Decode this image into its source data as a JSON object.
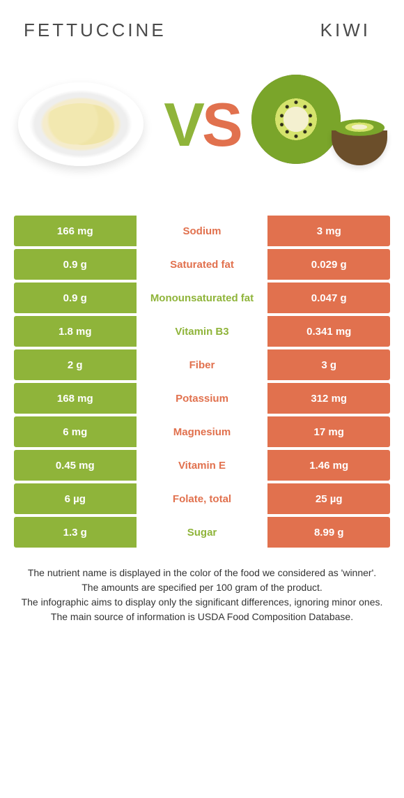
{
  "colors": {
    "left": "#8fb43a",
    "right": "#e1714e",
    "text": "#4a4a4a"
  },
  "food_left": "FETTUCCINE",
  "food_right": "KIWI",
  "title_fontsize": 26,
  "vs_label": "VS",
  "col_widths_pct": [
    33,
    34,
    33
  ],
  "rows": [
    {
      "nutrient": "Sodium",
      "winner": "right",
      "left": "166 mg",
      "right": "3 mg"
    },
    {
      "nutrient": "Saturated fat",
      "winner": "right",
      "left": "0.9 g",
      "right": "0.029 g"
    },
    {
      "nutrient": "Monounsaturated fat",
      "winner": "left",
      "left": "0.9 g",
      "right": "0.047 g"
    },
    {
      "nutrient": "Vitamin B3",
      "winner": "left",
      "left": "1.8 mg",
      "right": "0.341 mg"
    },
    {
      "nutrient": "Fiber",
      "winner": "right",
      "left": "2 g",
      "right": "3 g"
    },
    {
      "nutrient": "Potassium",
      "winner": "right",
      "left": "168 mg",
      "right": "312 mg"
    },
    {
      "nutrient": "Magnesium",
      "winner": "right",
      "left": "6 mg",
      "right": "17 mg"
    },
    {
      "nutrient": "Vitamin E",
      "winner": "right",
      "left": "0.45 mg",
      "right": "1.46 mg"
    },
    {
      "nutrient": "Folate, total",
      "winner": "right",
      "left": "6 µg",
      "right": "25 µg"
    },
    {
      "nutrient": "Sugar",
      "winner": "left",
      "left": "1.3 g",
      "right": "8.99 g"
    }
  ],
  "notes": [
    "The nutrient name is displayed in the color of the food we considered as 'winner'.",
    "The amounts are specified per 100 gram of the product.",
    "The infographic aims to display only the significant differences, ignoring minor ones.",
    "The main source of information is USDA Food Composition Database."
  ]
}
